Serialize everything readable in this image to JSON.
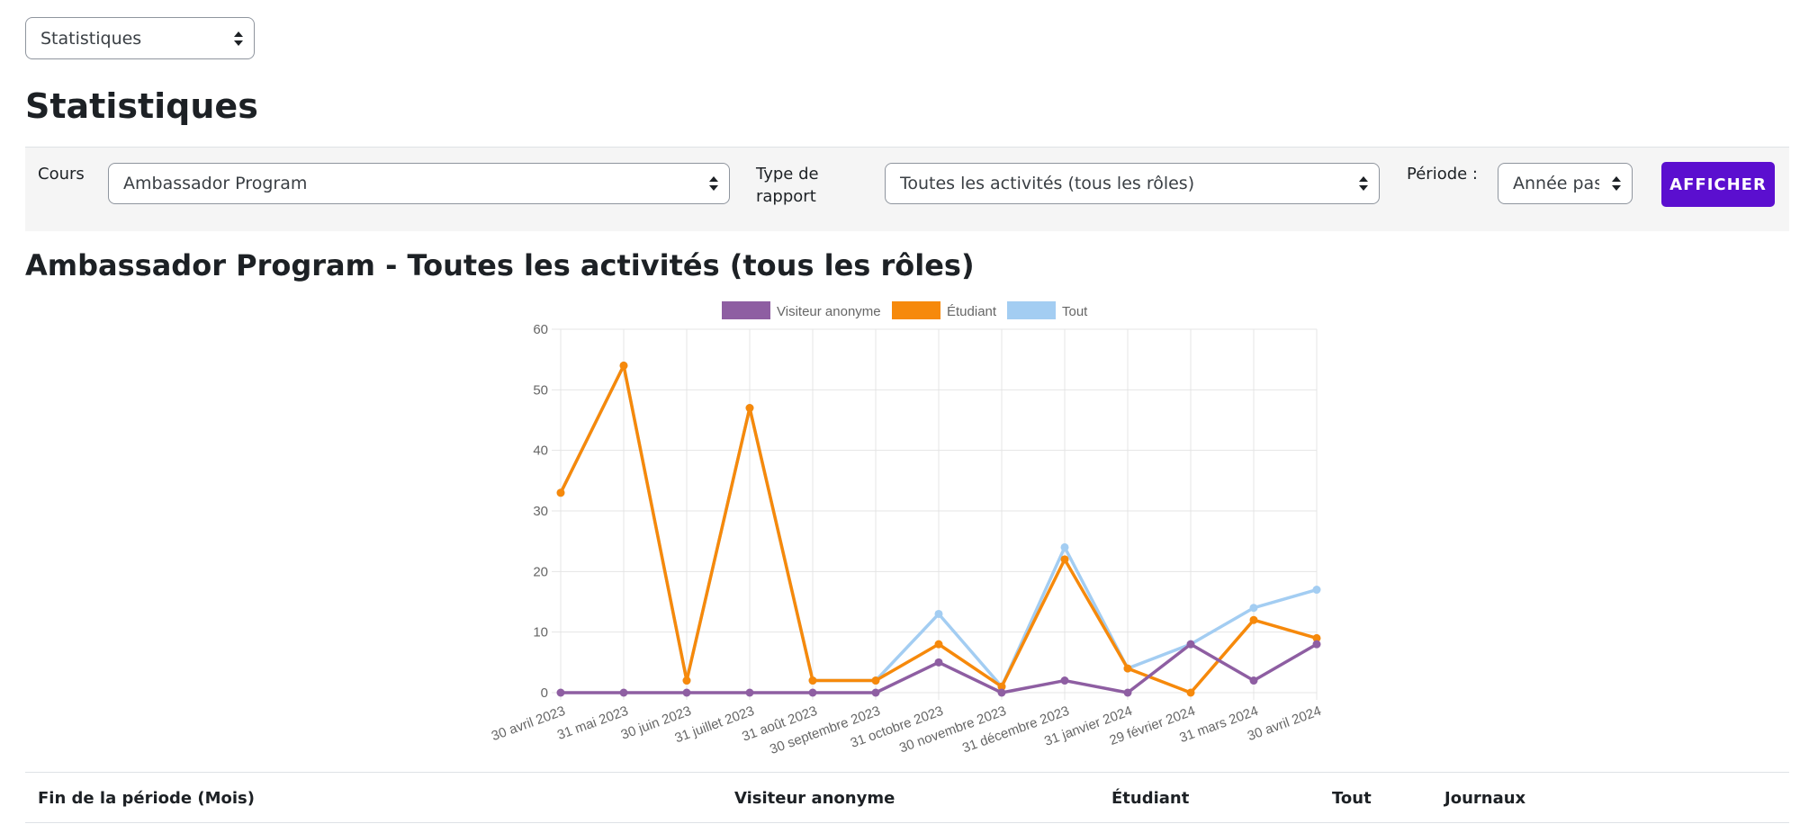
{
  "top_select": {
    "value": "Statistiques"
  },
  "page_title": "Statistiques",
  "filters": {
    "course_label": "Cours",
    "course_value": "Ambassador Program",
    "report_type_label_line1": "Type de",
    "report_type_label_line2": "rapport",
    "report_type_value": "Toutes les activités (tous les rôles)",
    "period_label": "Période :",
    "period_value": "Année passée",
    "show_button": "AFFICHER"
  },
  "report_title": "Ambassador Program - Toutes les activités (tous les rôles)",
  "colors": {
    "anon": "#8e5ea2",
    "student": "#f6890b",
    "all": "#a3cdf2",
    "accent": "#5b0fcf"
  },
  "chart_data": {
    "type": "line",
    "categories": [
      "30 avril 2023",
      "31 mai 2023",
      "30 juin 2023",
      "31 juillet 2023",
      "31 août 2023",
      "30 septembre 2023",
      "31 octobre 2023",
      "30 novembre 2023",
      "31 décembre 2023",
      "31 janvier 2024",
      "29 février 2024",
      "31 mars 2024",
      "30 avril 2024"
    ],
    "series": [
      {
        "name": "Visiteur anonyme",
        "color": "#8e5ea2",
        "values": [
          0,
          0,
          0,
          0,
          0,
          0,
          5,
          0,
          2,
          0,
          8,
          2,
          8
        ]
      },
      {
        "name": "Étudiant",
        "color": "#f6890b",
        "values": [
          33,
          54,
          2,
          47,
          2,
          2,
          8,
          1,
          22,
          4,
          0,
          12,
          9
        ]
      },
      {
        "name": "Tout",
        "color": "#a3cdf2",
        "values": [
          33,
          54,
          2,
          47,
          2,
          2,
          13,
          1,
          24,
          4,
          8,
          14,
          17
        ]
      }
    ],
    "yticks": [
      "0",
      "10",
      "20",
      "30",
      "40",
      "50",
      "60"
    ],
    "ylim": [
      0,
      60
    ],
    "grid": true,
    "legend": "top"
  },
  "table": {
    "headers": [
      "Fin de la période (Mois)",
      "Visiteur anonyme",
      "Étudiant",
      "Tout",
      "Journaux"
    ]
  }
}
